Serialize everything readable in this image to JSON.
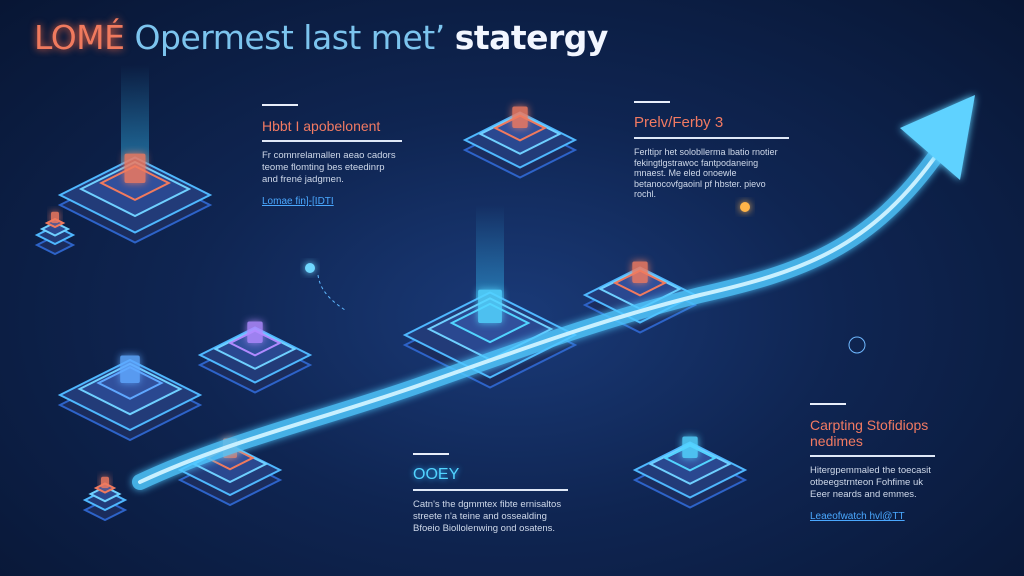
{
  "title": {
    "part1": "LOMÉ",
    "part2": "Opermest last met’",
    "part3": "statergy"
  },
  "blocks": [
    {
      "heading": "Hbbt I apobelonent",
      "body": "Fr comnrelamallen aeao cadors teome flomting bes eteedinrp and frené jadgmen.",
      "link": "Lomae fin]-[IDTI"
    },
    {
      "heading": "Prelv/Ferby 3",
      "body": "Ferltipr het solobllerma lbatio rnotier fekingtlgstrawoc fantpodaneing mnaest. Me eled onoewle betanocovfgaoinl pf hbster. pievo rochl."
    },
    {
      "heading": "OOEY",
      "body": "Catn's the dgmmtex fibte ernisaltos streete n'a teine and ossealding Bfoeio Biollolenwing ond osatens."
    },
    {
      "heading": "Carpting Stofidiops nedimes",
      "body": "Hitergpemmaled the toecasit otbeegstrnteon Fohfime uk Eeer neards and emmes.",
      "link": "Leaeofwatch hvl@TT"
    }
  ],
  "colors": {
    "accent_orange": "#f27a62",
    "accent_cyan": "#52d4ff",
    "arrow": "#4fc8ff",
    "background": "#0f2552"
  }
}
